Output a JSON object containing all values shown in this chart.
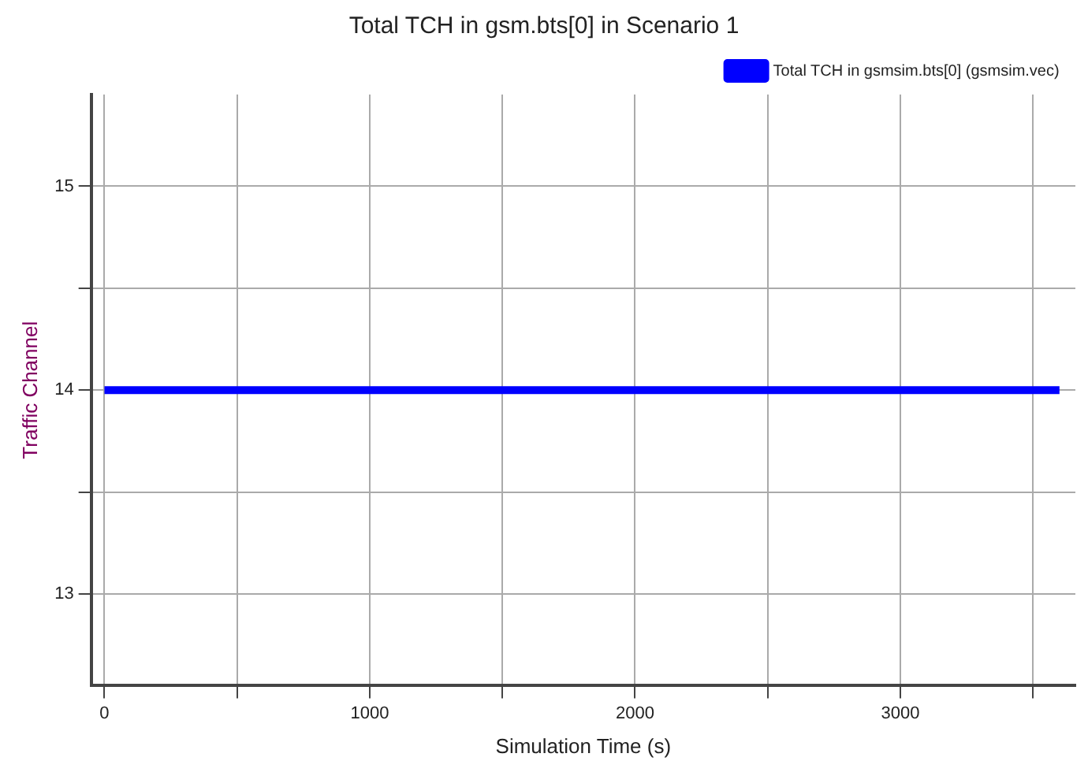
{
  "chart_data": {
    "type": "line",
    "title": "Total TCH in gsm.bts[0] in Scenario 1",
    "xlabel": "Simulation Time (s)",
    "ylabel": "Traffic Channel",
    "x": [
      0,
      3600
    ],
    "series": [
      {
        "name": "Total TCH in gsmsim.bts[0] (gsmsim.vec)",
        "color": "#0000ff",
        "values": [
          14,
          14
        ]
      }
    ],
    "xlim": [
      -50,
      3660
    ],
    "xticks": [
      0,
      {
        "value": 500,
        "label": null
      },
      1000,
      {
        "value": 1500,
        "label": null
      },
      2000,
      {
        "value": 2500,
        "label": null
      },
      3000,
      {
        "value": 3500,
        "label": null
      }
    ],
    "ylim": [
      12.55,
      15.45
    ],
    "yticks": [
      13,
      {
        "value": 13.5,
        "label": null
      },
      14,
      {
        "value": 14.5,
        "label": null
      },
      15
    ],
    "grid": true,
    "legend": "top right",
    "marker": "none",
    "line_style": "solid"
  }
}
